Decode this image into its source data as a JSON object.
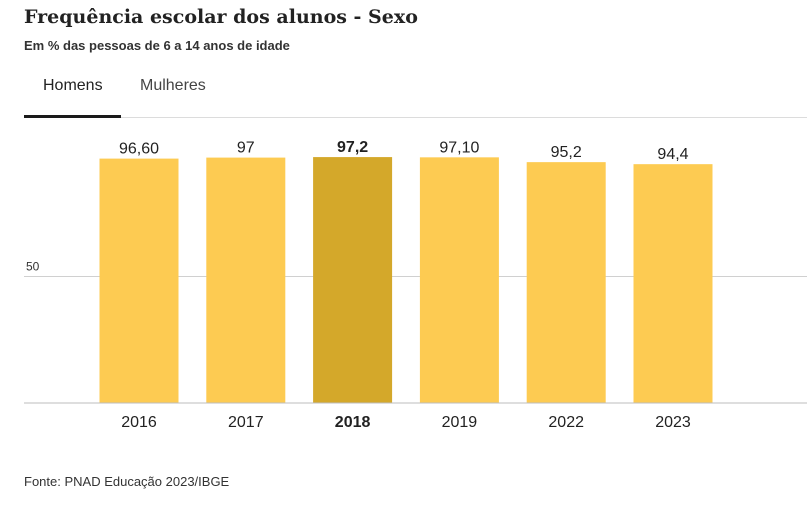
{
  "title": "Frequência escolar dos alunos - Sexo",
  "subtitle": "Em % das pessoas de 6 a 14 anos de idade",
  "tabs": [
    {
      "label": "Homens",
      "active": true
    },
    {
      "label": "Mulheres",
      "active": false
    }
  ],
  "source": "Fonte: PNAD Educação 2023/IBGE",
  "colors": {
    "bar": "#fdcb52",
    "highlight": "#d4a82a",
    "grid": "#d0d0d0"
  },
  "chart_data": {
    "type": "bar",
    "categories": [
      "2016",
      "2017",
      "2018",
      "2019",
      "2022",
      "2023"
    ],
    "values": [
      96.6,
      97,
      97.2,
      97.1,
      95.2,
      94.4
    ],
    "value_labels": [
      "96,60",
      "97",
      "97,2",
      "97,10",
      "95,2",
      "94,4"
    ],
    "highlight_index": 2,
    "ylim": [
      0,
      100
    ],
    "yticks": [
      {
        "value": 50,
        "label": "50"
      }
    ],
    "grid": true
  }
}
